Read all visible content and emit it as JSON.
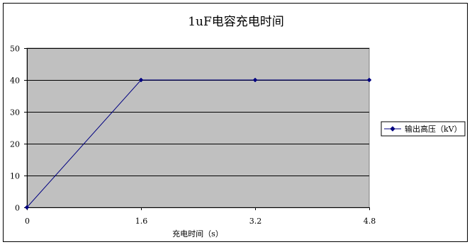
{
  "chart_data": {
    "type": "line",
    "title": "1uF电容充电时间",
    "xlabel": "充电时间（s）",
    "ylabel": "",
    "x": [
      0,
      1.6,
      3.2,
      4.8
    ],
    "x_tick_labels": [
      "0",
      "1.6",
      "3.2",
      "4.8"
    ],
    "y_ticks": [
      0,
      10,
      20,
      30,
      40,
      50
    ],
    "xlim": [
      0,
      4.8
    ],
    "ylim": [
      0,
      50
    ],
    "grid": true,
    "plot_background": "#c0c0c0",
    "legend_position": "right",
    "series": [
      {
        "name": "输出高压（kV）",
        "values": [
          0,
          40,
          40,
          40
        ],
        "color": "#000080",
        "marker": "diamond"
      }
    ]
  }
}
